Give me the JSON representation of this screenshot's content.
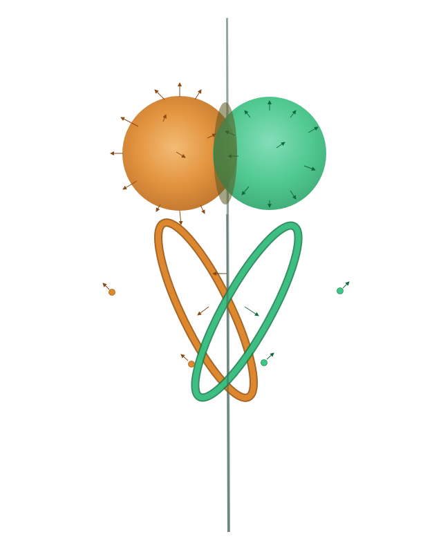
{
  "scene": {
    "description_label": "",
    "colors": {
      "orange": "#e08a2e",
      "orange_dark": "#9a5512",
      "green": "#2fc27a",
      "green_dark": "#137a48",
      "plane": "#5c7a6c",
      "background": "#ffffff"
    },
    "objects": [
      "mirror-plane",
      "orange-sphere",
      "green-sphere",
      "orange-ring",
      "green-ring",
      "orange-point-left",
      "orange-point-bottom",
      "green-point-right",
      "green-point-bottom"
    ]
  }
}
